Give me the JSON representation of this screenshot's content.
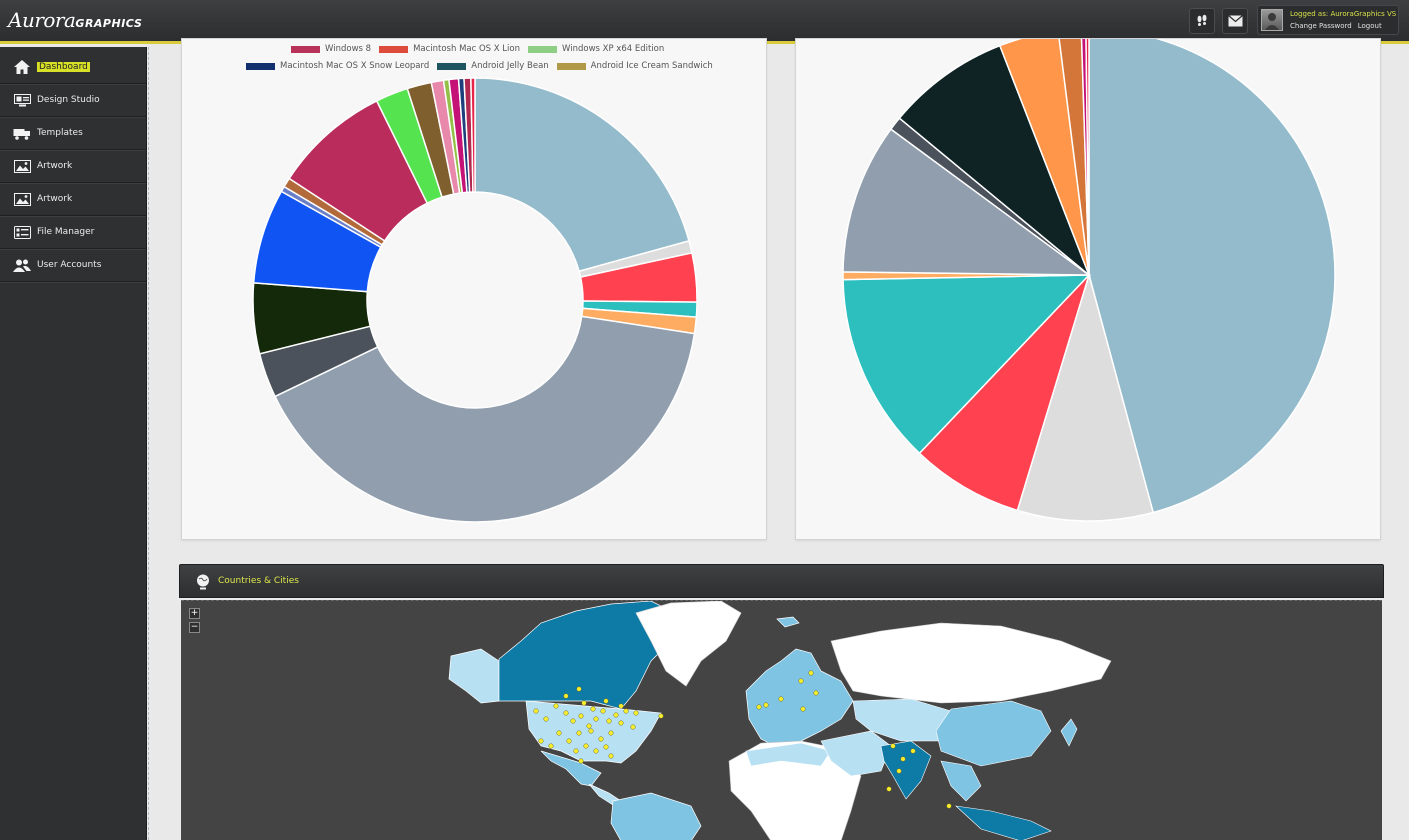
{
  "app": {
    "logo_main": "Aurora",
    "logo_sub": "GRAPHICS"
  },
  "header": {
    "icons": [
      "footprints-icon",
      "mail-icon"
    ],
    "user": {
      "logged_in_text": "Logged as: AuroraGraphics VS",
      "change_password": "Change Password",
      "logout": "Logout"
    }
  },
  "sidebar": {
    "items": [
      {
        "label": "Dashboard",
        "icon": "home-icon",
        "active": true
      },
      {
        "label": "Design Studio",
        "icon": "design-studio-icon",
        "active": false
      },
      {
        "label": "Templates",
        "icon": "templates-icon",
        "active": false
      },
      {
        "label": "Artwork",
        "icon": "image-icon",
        "active": false
      },
      {
        "label": "Artwork",
        "icon": "image-icon",
        "active": false
      },
      {
        "label": "File Manager",
        "icon": "file-manager-icon",
        "active": false
      },
      {
        "label": "User Accounts",
        "icon": "users-icon",
        "active": false
      }
    ]
  },
  "donut_legend": {
    "row1": [
      {
        "label": "Windows 8",
        "color": "#b8325a"
      },
      {
        "label": "Macintosh Mac OS X Lion",
        "color": "#dc4b3c"
      },
      {
        "label": "Windows XP x64 Edition",
        "color": "#8fce85"
      }
    ],
    "row2": [
      {
        "label": "Macintosh Mac OS X Snow Leopard",
        "color": "#12306e"
      },
      {
        "label": "Android Jelly Bean",
        "color": "#1e5560"
      },
      {
        "label": "Android Ice Cream Sandwich",
        "color": "#b09a48"
      }
    ]
  },
  "map": {
    "title": "Countries & Cities",
    "zoom_in": "+",
    "zoom_out": "−"
  },
  "chart_data": [
    {
      "type": "pie",
      "variant": "donut",
      "slices": [
        {
          "value": 21.0,
          "color": "#94bbcb"
        },
        {
          "value": 0.9,
          "color": "#dddddd"
        },
        {
          "value": 3.6,
          "color": "#ff4150"
        },
        {
          "value": 1.1,
          "color": "#2cbfbe"
        },
        {
          "value": 1.2,
          "color": "#ffac63"
        },
        {
          "value": 41.0,
          "color": "#919eae"
        },
        {
          "value": 3.3,
          "color": "#4c525c"
        },
        {
          "value": 5.2,
          "color": "#13290a"
        },
        {
          "value": 7.0,
          "color": "#1055f4"
        },
        {
          "value": 0.4,
          "color": "#6a7fc8"
        },
        {
          "value": 0.7,
          "color": "#b36a3b"
        },
        {
          "value": 8.6,
          "color": "#b92c5c"
        },
        {
          "value": 2.4,
          "color": "#55e34f"
        },
        {
          "value": 1.8,
          "color": "#805f2e"
        },
        {
          "value": 0.9,
          "color": "#e889ac"
        },
        {
          "value": 0.4,
          "color": "#94bf49"
        },
        {
          "value": 0.7,
          "color": "#c41277"
        },
        {
          "value": 0.4,
          "color": "#1f3f7c"
        },
        {
          "value": 0.5,
          "color": "#b12850"
        },
        {
          "value": 0.3,
          "color": "#e62448"
        }
      ]
    },
    {
      "type": "pie",
      "slices": [
        {
          "value": 45.8,
          "color": "#94bbcb"
        },
        {
          "value": 8.9,
          "color": "#dddddd"
        },
        {
          "value": 7.4,
          "color": "#ff4150"
        },
        {
          "value": 12.6,
          "color": "#2cbfbe"
        },
        {
          "value": 0.5,
          "color": "#ffac63"
        },
        {
          "value": 9.9,
          "color": "#919eae"
        },
        {
          "value": 0.9,
          "color": "#4c525c"
        },
        {
          "value": 8.1,
          "color": "#0f2324"
        },
        {
          "value": 3.9,
          "color": "#ff964a"
        },
        {
          "value": 1.5,
          "color": "#d4753a"
        },
        {
          "value": 0.3,
          "color": "#c41277"
        },
        {
          "value": 0.2,
          "color": "#e62448"
        }
      ]
    }
  ]
}
